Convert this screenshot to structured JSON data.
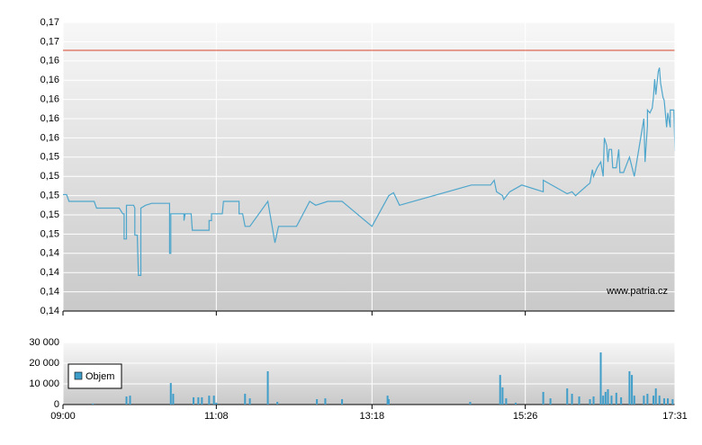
{
  "chart_data": [
    {
      "type": "line",
      "xlim": [
        540,
        1051
      ],
      "xticks": [
        540,
        668,
        798,
        926,
        1051
      ],
      "ylim": [
        0.138,
        0.168
      ],
      "yticks": [
        {
          "value": 0.138,
          "label": "0,14"
        },
        {
          "value": 0.14,
          "label": "0,14"
        },
        {
          "value": 0.142,
          "label": "0,14"
        },
        {
          "value": 0.144,
          "label": "0,14"
        },
        {
          "value": 0.146,
          "label": "0,15"
        },
        {
          "value": 0.148,
          "label": "0,15"
        },
        {
          "value": 0.15,
          "label": "0,15"
        },
        {
          "value": 0.152,
          "label": "0,15"
        },
        {
          "value": 0.154,
          "label": "0,15"
        },
        {
          "value": 0.156,
          "label": "0,16"
        },
        {
          "value": 0.158,
          "label": "0,16"
        },
        {
          "value": 0.16,
          "label": "0,16"
        },
        {
          "value": 0.162,
          "label": "0,16"
        },
        {
          "value": 0.164,
          "label": "0,16"
        },
        {
          "value": 0.166,
          "label": "0,17"
        },
        {
          "value": 0.168,
          "label": "0,17"
        }
      ],
      "grid": true,
      "reference_line": {
        "value": 0.1651,
        "color": "#d9442c"
      },
      "watermark": "www.patria.cz",
      "series": [
        {
          "color": "#4ea6cc",
          "x": [
            540,
            543,
            545,
            566,
            568,
            587,
            590,
            591,
            591,
            593,
            593,
            599,
            600,
            600,
            602,
            603,
            605,
            605,
            609,
            614,
            629,
            629,
            630,
            630,
            641,
            641,
            642,
            647,
            648,
            662,
            662,
            664,
            664,
            673,
            674,
            687,
            687,
            690,
            692,
            696,
            711,
            717,
            720,
            735,
            746,
            751,
            761,
            773,
            798,
            812,
            816,
            821,
            881,
            897,
            900,
            902,
            907,
            908,
            913,
            923,
            941,
            941,
            961,
            965,
            968,
            978,
            980,
            982,
            983,
            986,
            989,
            991,
            992,
            994,
            995,
            996,
            998,
            999,
            1002,
            1004,
            1005,
            1008,
            1013,
            1017,
            1021,
            1025,
            1026,
            1028,
            1028,
            1030,
            1032,
            1033,
            1034,
            1035,
            1037,
            1038,
            1039,
            1041,
            1042,
            1044,
            1045,
            1047,
            1047,
            1050,
            1051
          ],
          "values": [
            0.1501,
            0.1501,
            0.1494,
            0.1494,
            0.1487,
            0.1487,
            0.1481,
            0.1481,
            0.1455,
            0.1455,
            0.149,
            0.149,
            0.1487,
            0.1459,
            0.1459,
            0.1417,
            0.1417,
            0.1487,
            0.149,
            0.1492,
            0.1492,
            0.144,
            0.144,
            0.1481,
            0.1481,
            0.1474,
            0.1481,
            0.1481,
            0.1464,
            0.1464,
            0.1474,
            0.1474,
            0.1481,
            0.1481,
            0.1494,
            0.1494,
            0.1481,
            0.1481,
            0.1468,
            0.1468,
            0.1494,
            0.1451,
            0.1468,
            0.1468,
            0.1494,
            0.149,
            0.1494,
            0.1494,
            0.1468,
            0.15,
            0.1503,
            0.149,
            0.1511,
            0.1511,
            0.1516,
            0.1504,
            0.15,
            0.1496,
            0.1504,
            0.1511,
            0.1504,
            0.1516,
            0.1502,
            0.1504,
            0.15,
            0.1511,
            0.1513,
            0.1527,
            0.152,
            0.1529,
            0.1535,
            0.152,
            0.156,
            0.1552,
            0.1535,
            0.1548,
            0.1548,
            0.1529,
            0.1529,
            0.1548,
            0.1524,
            0.1524,
            0.154,
            0.152,
            0.155,
            0.158,
            0.1535,
            0.1573,
            0.1589,
            0.1586,
            0.1591,
            0.1602,
            0.1621,
            0.1605,
            0.1629,
            0.1633,
            0.1617,
            0.1602,
            0.1599,
            0.1571,
            0.1586,
            0.1571,
            0.1589,
            0.1589,
            0.1546
          ]
        }
      ]
    },
    {
      "type": "bar",
      "xlim": [
        540,
        1051
      ],
      "xticks": [
        {
          "value": 540,
          "label": "09:00"
        },
        {
          "value": 668,
          "label": "11:08"
        },
        {
          "value": 798,
          "label": "13:18"
        },
        {
          "value": 926,
          "label": "15:26"
        },
        {
          "value": 1051,
          "label": "17:31"
        }
      ],
      "ylim": [
        0,
        30000
      ],
      "yticks": [
        0,
        {
          "value": 10000,
          "label": "10 000"
        },
        {
          "value": 20000,
          "label": "20 000"
        },
        {
          "value": 30000,
          "label": "30 000"
        }
      ],
      "grid": true,
      "series": [
        {
          "name": "Objem",
          "color": "#3f9dc9",
          "x": [
            565,
            593,
            596,
            630,
            632,
            649,
            653,
            656,
            662,
            666,
            668,
            692,
            696,
            711,
            719,
            752,
            759,
            773,
            811,
            812,
            880,
            905,
            907,
            910,
            918,
            941,
            947,
            961,
            965,
            971,
            980,
            983,
            989,
            991,
            993,
            995,
            998,
            1002,
            1006,
            1013,
            1015,
            1017,
            1025,
            1028,
            1033,
            1035,
            1038,
            1042,
            1045,
            1049
          ],
          "values": [
            500,
            3900,
            4300,
            10400,
            5200,
            3500,
            3500,
            3500,
            4300,
            4300,
            900,
            5200,
            3000,
            16100,
            1300,
            2600,
            3000,
            2600,
            4300,
            2600,
            1300,
            14300,
            8300,
            3000,
            900,
            6100,
            3000,
            7800,
            5200,
            3900,
            2600,
            3900,
            25200,
            4300,
            6100,
            7400,
            4300,
            5700,
            3500,
            16100,
            14300,
            4300,
            4300,
            5200,
            4300,
            7800,
            4300,
            3000,
            3000,
            2600
          ]
        }
      ]
    }
  ]
}
